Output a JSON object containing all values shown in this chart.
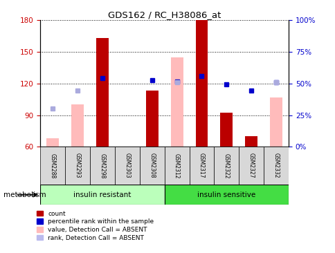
{
  "title": "GDS162 / RC_H38086_at",
  "samples": [
    "GSM2288",
    "GSM2293",
    "GSM2298",
    "GSM2303",
    "GSM2308",
    "GSM2312",
    "GSM2317",
    "GSM2322",
    "GSM2327",
    "GSM2332"
  ],
  "red_bars": [
    60,
    0,
    163,
    0,
    113,
    0,
    180,
    92,
    70,
    0
  ],
  "pink_bars": [
    68,
    100,
    0,
    0,
    0,
    145,
    0,
    0,
    0,
    107
  ],
  "blue_squares": [
    null,
    null,
    125,
    null,
    123,
    122,
    127,
    119,
    113,
    121
  ],
  "lightblue_squares": [
    96,
    113,
    null,
    null,
    null,
    121,
    null,
    null,
    null,
    121
  ],
  "ylim": [
    60,
    180
  ],
  "y2lim": [
    0,
    100
  ],
  "yticks": [
    60,
    90,
    120,
    150,
    180
  ],
  "y2ticks": [
    0,
    25,
    50,
    75,
    100
  ],
  "y2ticklabels": [
    "0%",
    "25%",
    "50%",
    "75%",
    "100%"
  ],
  "group1_label": "insulin resistant",
  "group2_label": "insulin sensitive",
  "group1_indices": [
    0,
    1,
    2,
    3,
    4
  ],
  "group2_indices": [
    5,
    6,
    7,
    8,
    9
  ],
  "legend_labels": [
    "count",
    "percentile rank within the sample",
    "value, Detection Call = ABSENT",
    "rank, Detection Call = ABSENT"
  ],
  "legend_colors": [
    "#bb0000",
    "#0000cc",
    "#ffbbbb",
    "#bbbbee"
  ],
  "bar_color_red": "#bb0000",
  "bar_color_pink": "#ffbbbb",
  "dot_color_blue": "#0000cc",
  "dot_color_lightblue": "#aaaadd",
  "group_bg_color_1": "#bbffbb",
  "group_bg_color_2": "#44dd44",
  "metabolism_label": "metabolism",
  "tick_label_color_left": "#cc0000",
  "tick_label_color_right": "#0000cc"
}
